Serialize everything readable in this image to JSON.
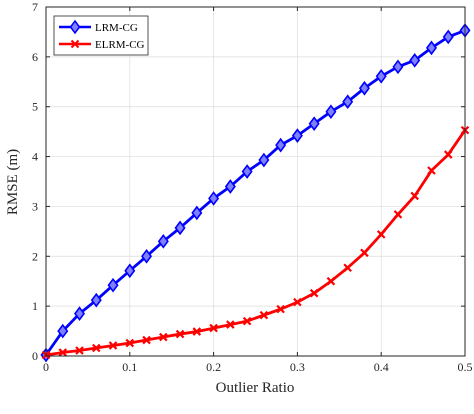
{
  "chart_data": {
    "type": "line",
    "xlabel": "Outlier Ratio",
    "ylabel": "RMSE (m)",
    "xlim": [
      0,
      0.5
    ],
    "ylim": [
      0,
      7
    ],
    "xticks": [
      "0",
      "0.1",
      "0.2",
      "0.3",
      "0.4",
      "0.5"
    ],
    "yticks": [
      "0",
      "1",
      "2",
      "3",
      "4",
      "5",
      "6",
      "7"
    ],
    "grid": true,
    "legend_position": "top-left",
    "x": [
      0,
      0.02,
      0.04,
      0.06,
      0.08,
      0.1,
      0.12,
      0.14,
      0.16,
      0.18,
      0.2,
      0.22,
      0.24,
      0.26,
      0.28,
      0.3,
      0.32,
      0.34,
      0.36,
      0.38,
      0.4,
      0.42,
      0.44,
      0.46,
      0.48,
      0.5
    ],
    "series": [
      {
        "name": "LRM-CG",
        "color": "#0000ff",
        "marker": "diamond",
        "values": [
          0.02,
          0.5,
          0.85,
          1.12,
          1.42,
          1.71,
          2.0,
          2.3,
          2.57,
          2.87,
          3.16,
          3.4,
          3.7,
          3.93,
          4.23,
          4.42,
          4.66,
          4.9,
          5.1,
          5.37,
          5.61,
          5.8,
          5.93,
          6.18,
          6.4,
          6.53
        ]
      },
      {
        "name": "ELRM-CG",
        "color": "#ff0000",
        "marker": "x",
        "values": [
          0.02,
          0.07,
          0.11,
          0.16,
          0.21,
          0.26,
          0.32,
          0.38,
          0.44,
          0.49,
          0.56,
          0.63,
          0.7,
          0.82,
          0.94,
          1.08,
          1.26,
          1.5,
          1.77,
          2.07,
          2.44,
          2.84,
          3.21,
          3.72,
          4.04,
          4.53
        ]
      }
    ]
  }
}
